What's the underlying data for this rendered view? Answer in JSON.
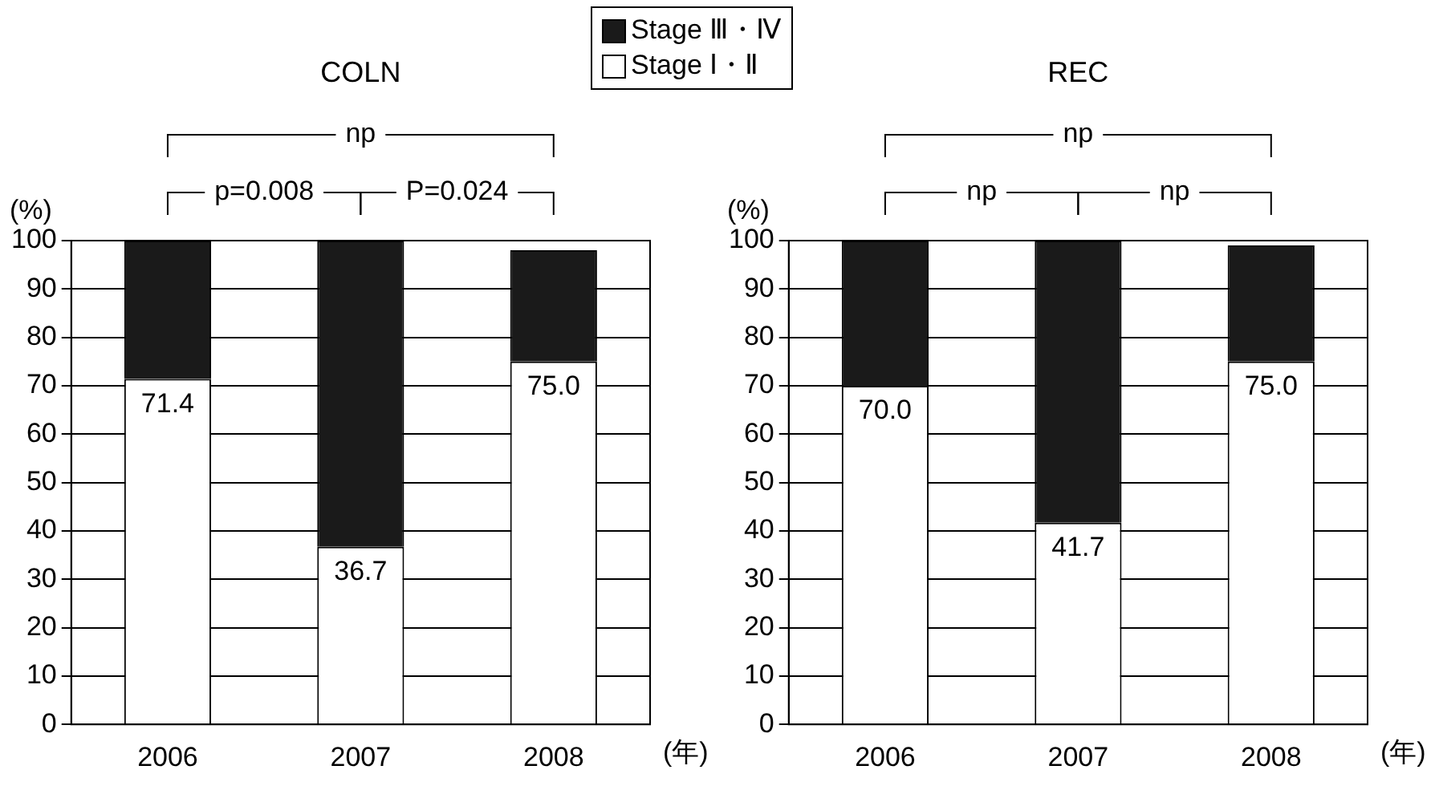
{
  "chart_data": [
    {
      "type": "bar",
      "title": "COLN",
      "ylabel": "(%)",
      "xlabel": "(年)",
      "categories": [
        "2006",
        "2007",
        "2008"
      ],
      "stacked": true,
      "grid": "y",
      "legend": "top",
      "ylim": [
        0,
        100
      ],
      "yticks": [
        0,
        10,
        20,
        30,
        40,
        50,
        60,
        70,
        80,
        90,
        100
      ],
      "series": [
        {
          "name": "Stage Ⅰ・Ⅱ",
          "color": "#ffffff",
          "values": [
            71.4,
            36.7,
            75.0
          ],
          "value_labels": [
            "71.4",
            "36.7",
            "75.0"
          ]
        },
        {
          "name": "Stage Ⅲ・Ⅳ",
          "color": "#1a1a1a",
          "values": [
            28.6,
            63.3,
            23
          ]
        }
      ],
      "annotations": [
        "np",
        "p=0.008",
        "P=0.024"
      ]
    },
    {
      "type": "bar",
      "title": "REC",
      "ylabel": "(%)",
      "xlabel": "(年)",
      "categories": [
        "2006",
        "2007",
        "2008"
      ],
      "stacked": true,
      "grid": "y",
      "ylim": [
        0,
        100
      ],
      "yticks": [
        0,
        10,
        20,
        30,
        40,
        50,
        60,
        70,
        80,
        90,
        100
      ],
      "series": [
        {
          "color": "#ffffff",
          "values": [
            70.0,
            41.7,
            75.0
          ],
          "value_labels": [
            "70.0",
            "41.7",
            "75.0"
          ]
        },
        {
          "color": "#1a1a1a",
          "values": [
            30.0,
            58.3,
            24
          ]
        }
      ],
      "annotations": [
        "np",
        "np",
        "np"
      ]
    }
  ]
}
